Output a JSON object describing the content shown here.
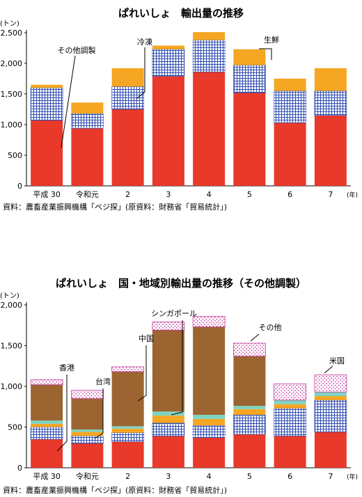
{
  "colors": {
    "frozen_pattern": "#2e4bb0",
    "other_processed": "#e8392a",
    "fresh": "#f5a623",
    "us": "#2e4bb0",
    "taiwan": "#f5a623",
    "hongkong": "#e8392a",
    "china": "#9b6430",
    "singapore": "#7fd3c3",
    "others": "#c0399b"
  },
  "page": {
    "chart1_title": "ぱれいしょ　輸出量の推移",
    "chart2_title": "ぱれいしょ　国・地域別輸出量の推移（その他調製）",
    "source1": "資料：農畜産業振興機構「ベジ探」(原資料：財務省「貿易統計」)",
    "source2": "資料：農畜産業振興機構「ベジ探」(原資料：財務省「貿易統計」)"
  },
  "chart_data": [
    {
      "type": "bar",
      "stacked": true,
      "title": "ぱれいしょ　輸出量の推移",
      "ylabel": "(トン)",
      "xlabel": "(年)",
      "ylim": [
        0,
        2500
      ],
      "yticks": [
        "0",
        "500",
        "1,000",
        "1,500",
        "2,000",
        "2,500"
      ],
      "categories": [
        "平成 30",
        "令和元",
        "2",
        "3",
        "4",
        "5",
        "6",
        "7"
      ],
      "series": [
        {
          "name": "その他調製",
          "values": [
            1070,
            940,
            1250,
            1790,
            1860,
            1520,
            1030,
            1150
          ]
        },
        {
          "name": "冷凍",
          "values": [
            530,
            240,
            370,
            440,
            520,
            450,
            520,
            400
          ]
        },
        {
          "name": "生鮮",
          "values": [
            50,
            180,
            300,
            60,
            130,
            260,
            200,
            370
          ]
        }
      ]
    },
    {
      "type": "bar",
      "stacked": true,
      "title": "ぱれいしょ　国・地域別輸出量の推移（その他調製）",
      "ylabel": "(トン)",
      "xlabel": "(年)",
      "ylim": [
        0,
        2000
      ],
      "yticks": [
        "0",
        "500",
        "1,000",
        "1,500",
        "2,000"
      ],
      "categories": [
        "平成 30",
        "令和元",
        "2",
        "3",
        "4",
        "5",
        "6",
        "7"
      ],
      "series": [
        {
          "name": "香港",
          "values": [
            350,
            300,
            320,
            390,
            370,
            410,
            390,
            440
          ]
        },
        {
          "name": "米国",
          "values": [
            150,
            90,
            110,
            160,
            150,
            240,
            340,
            390
          ]
        },
        {
          "name": "台湾",
          "values": [
            40,
            50,
            50,
            90,
            80,
            70,
            50,
            50
          ]
        },
        {
          "name": "シンガポール",
          "values": [
            40,
            30,
            30,
            50,
            50,
            40,
            50,
            50
          ]
        },
        {
          "name": "中国",
          "values": [
            440,
            380,
            670,
            1000,
            1080,
            610,
            0,
            0
          ]
        },
        {
          "name": "その他",
          "values": [
            60,
            100,
            60,
            100,
            130,
            160,
            200,
            210
          ]
        }
      ],
      "annotations": [
        "香港",
        "台湾",
        "中国",
        "シンガポール",
        "その他",
        "米国"
      ]
    }
  ]
}
